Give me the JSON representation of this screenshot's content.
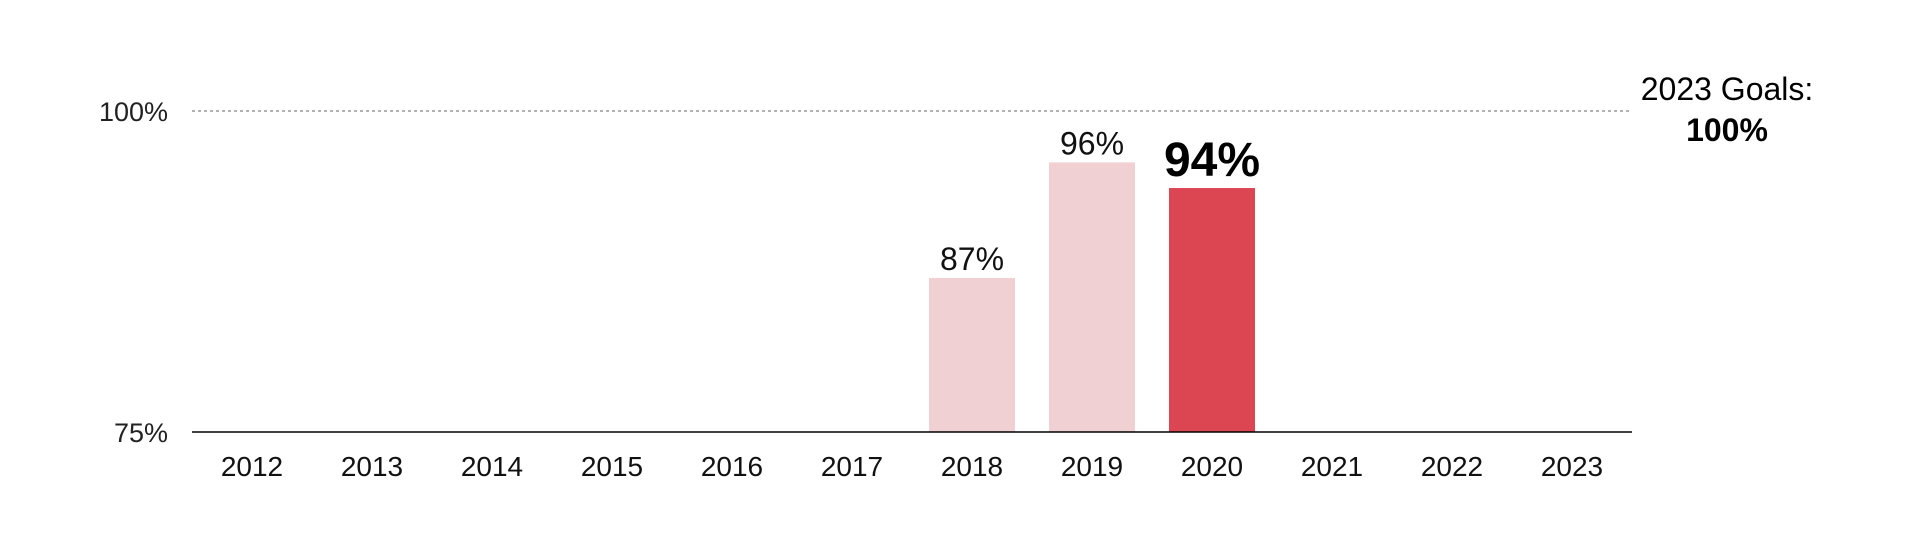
{
  "chart_data": {
    "type": "bar",
    "categories": [
      "2012",
      "2013",
      "2014",
      "2015",
      "2016",
      "2017",
      "2018",
      "2019",
      "2020",
      "2021",
      "2022",
      "2023"
    ],
    "values": [
      null,
      null,
      null,
      null,
      null,
      null,
      87,
      96,
      94,
      null,
      null,
      null
    ],
    "data_labels": [
      "",
      "",
      "",
      "",
      "",
      "",
      "87%",
      "96%",
      "94%",
      "",
      "",
      ""
    ],
    "highlight_category": "2020",
    "yticks": [
      {
        "value": 75,
        "label": "75%"
      },
      {
        "value": 100,
        "label": "100%"
      }
    ],
    "ylim": [
      75,
      100
    ],
    "grid": false,
    "goal": {
      "value": 100,
      "line_style": "dotted",
      "label": "2023 Goals:",
      "value_label": "100%"
    },
    "colors": {
      "bar": "#F1D0D3",
      "highlight": "#DB4652",
      "goal_line": "#999999",
      "axis": "#000000"
    }
  }
}
